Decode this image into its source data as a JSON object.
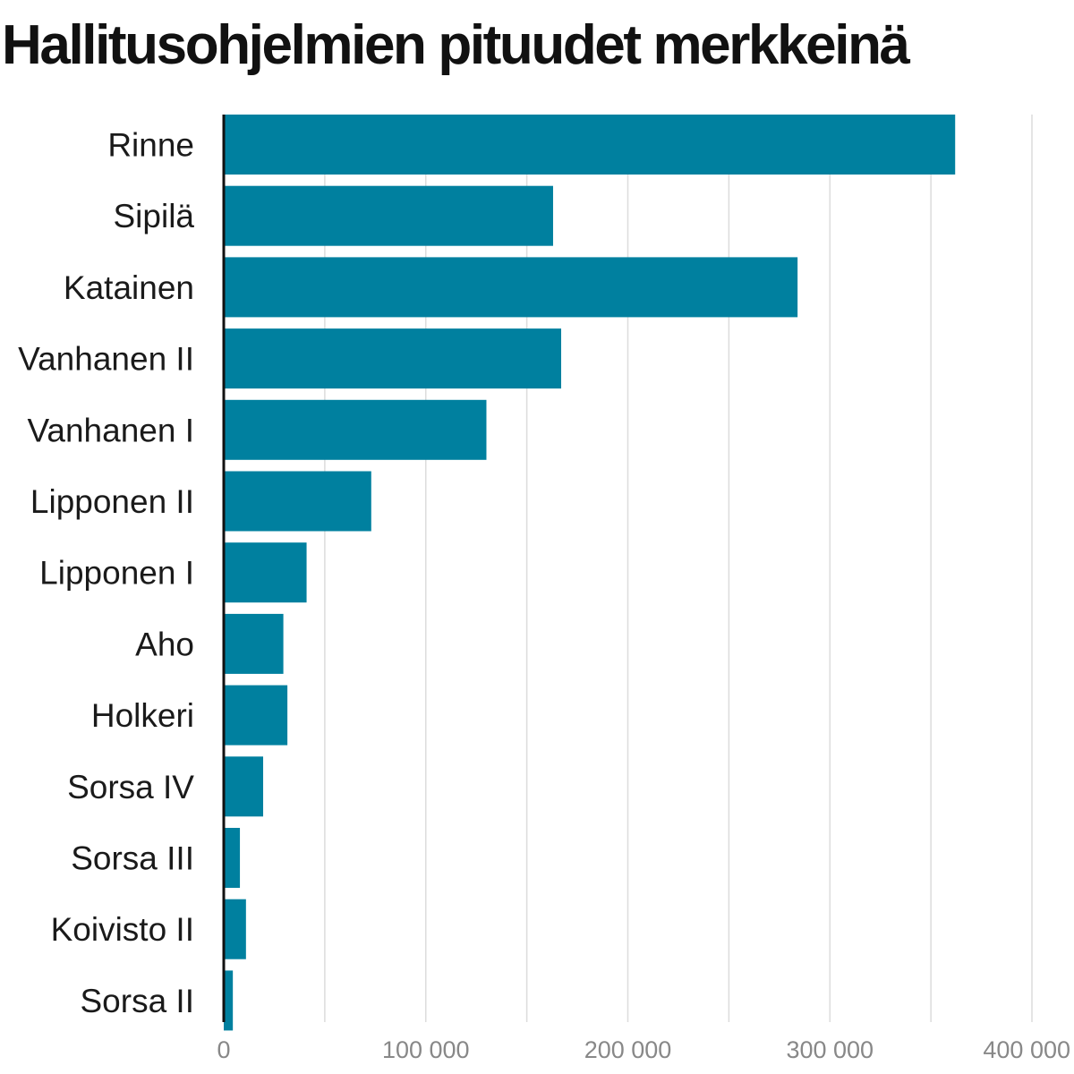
{
  "chart_data": {
    "type": "bar",
    "orientation": "horizontal",
    "title": "Hallitusohjelmien pituudet merkkeinä",
    "categories": [
      "Rinne",
      "Sipilä",
      "Katainen",
      "Vanhanen II",
      "Vanhanen I",
      "Lipponen II",
      "Lipponen I",
      "Aho",
      "Holkeri",
      "Sorsa IV",
      "Sorsa III",
      "Koivisto II",
      "Sorsa II"
    ],
    "values": [
      362000,
      163000,
      284000,
      167000,
      130000,
      73000,
      41000,
      29500,
      31500,
      19500,
      8000,
      11000,
      4500
    ],
    "xlim": [
      0,
      400000
    ],
    "x_ticks": [
      0,
      100000,
      200000,
      300000,
      400000
    ],
    "x_tick_labels": [
      "0",
      "100 000",
      "200 000",
      "300 000",
      "400 000"
    ],
    "grid": true,
    "bar_color": "#00809f",
    "legend": "none"
  }
}
